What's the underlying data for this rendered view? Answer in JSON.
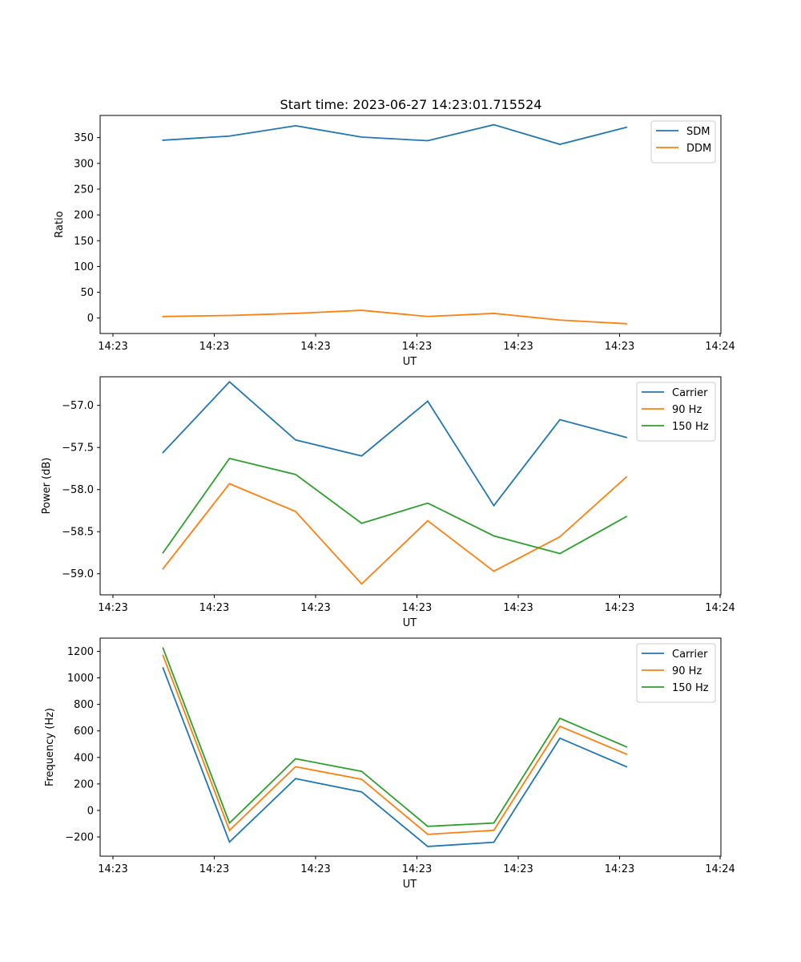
{
  "title": "Start time: 2023-06-27 14:23:01.715524",
  "chart_data": [
    {
      "type": "line",
      "xlabel": "UT",
      "ylabel": "Ratio",
      "x_tick_labels": [
        "14:23",
        "14:23",
        "14:23",
        "14:23",
        "14:23",
        "14:23",
        "14:24"
      ],
      "y_ticks": [
        0,
        50,
        100,
        150,
        200,
        250,
        300,
        350
      ],
      "y_tick_labels": [
        "0",
        "50",
        "100",
        "150",
        "200",
        "250",
        "300",
        "350"
      ],
      "ylim": [
        -30,
        393
      ],
      "legend_position": "upper right",
      "x": [
        1,
        2,
        3,
        4,
        5,
        6,
        7,
        8
      ],
      "series": [
        {
          "name": "SDM",
          "color": "#1f77b4",
          "values": [
            345,
            353,
            373,
            351,
            344,
            375,
            337,
            370
          ]
        },
        {
          "name": "DDM",
          "color": "#ff7f0e",
          "values": [
            3,
            5,
            9,
            15,
            3,
            9,
            -4,
            -11
          ]
        }
      ]
    },
    {
      "type": "line",
      "xlabel": "UT",
      "ylabel": "Power (dB)",
      "x_tick_labels": [
        "14:23",
        "14:23",
        "14:23",
        "14:23",
        "14:23",
        "14:23",
        "14:24"
      ],
      "y_ticks": [
        -59.0,
        -58.5,
        -58.0,
        -57.5,
        -57.0
      ],
      "y_tick_labels": [
        "−59.0",
        "−58.5",
        "−58.0",
        "−57.5",
        "−57.0"
      ],
      "ylim": [
        -59.25,
        -56.66
      ],
      "legend_position": "upper right",
      "x": [
        1,
        2,
        3,
        4,
        5,
        6,
        7,
        8
      ],
      "series": [
        {
          "name": "Carrier",
          "color": "#1f77b4",
          "values": [
            -57.56,
            -56.72,
            -57.41,
            -57.6,
            -56.95,
            -58.19,
            -57.17,
            -57.38
          ]
        },
        {
          "name": "90 Hz",
          "color": "#ff7f0e",
          "values": [
            -58.94,
            -57.93,
            -58.26,
            -59.12,
            -58.37,
            -58.97,
            -58.56,
            -57.85
          ]
        },
        {
          "name": "150 Hz",
          "color": "#2ca02c",
          "values": [
            -58.75,
            -57.63,
            -57.82,
            -58.4,
            -58.16,
            -58.55,
            -58.76,
            -58.32
          ]
        }
      ]
    },
    {
      "type": "line",
      "xlabel": "UT",
      "ylabel": "Frequency (Hz)",
      "x_tick_labels": [
        "14:23",
        "14:23",
        "14:23",
        "14:23",
        "14:23",
        "14:23",
        "14:24"
      ],
      "y_ticks": [
        -200,
        0,
        200,
        400,
        600,
        800,
        1000,
        1200
      ],
      "y_tick_labels": [
        "−200",
        "0",
        "200",
        "400",
        "600",
        "800",
        "1000",
        "1200"
      ],
      "ylim": [
        -345,
        1300
      ],
      "legend_position": "upper right",
      "x": [
        1,
        2,
        3,
        4,
        5,
        6,
        7,
        8
      ],
      "series": [
        {
          "name": "Carrier",
          "color": "#1f77b4",
          "values": [
            1075,
            -238,
            240,
            140,
            -272,
            -240,
            545,
            330
          ]
        },
        {
          "name": "90 Hz",
          "color": "#ff7f0e",
          "values": [
            1170,
            -150,
            330,
            235,
            -180,
            -150,
            635,
            425
          ]
        },
        {
          "name": "150 Hz",
          "color": "#2ca02c",
          "values": [
            1225,
            -95,
            390,
            295,
            -120,
            -95,
            695,
            480
          ]
        }
      ]
    }
  ]
}
